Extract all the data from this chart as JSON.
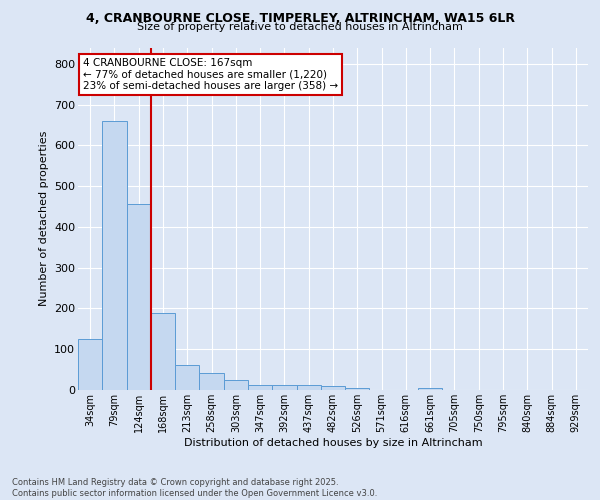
{
  "title_line1": "4, CRANBOURNE CLOSE, TIMPERLEY, ALTRINCHAM, WA15 6LR",
  "title_line2": "Size of property relative to detached houses in Altrincham",
  "xlabel": "Distribution of detached houses by size in Altrincham",
  "ylabel": "Number of detached properties",
  "categories": [
    "34sqm",
    "79sqm",
    "124sqm",
    "168sqm",
    "213sqm",
    "258sqm",
    "303sqm",
    "347sqm",
    "392sqm",
    "437sqm",
    "482sqm",
    "526sqm",
    "571sqm",
    "616sqm",
    "661sqm",
    "705sqm",
    "750sqm",
    "795sqm",
    "840sqm",
    "884sqm",
    "929sqm"
  ],
  "values": [
    125,
    660,
    455,
    190,
    62,
    42,
    25,
    12,
    12,
    12,
    10,
    5,
    0,
    0,
    5,
    0,
    0,
    0,
    0,
    0,
    0
  ],
  "bar_color": "#c5d8f0",
  "bar_edge_color": "#5b9bd5",
  "marker_line_index": 3,
  "marker_line_color": "#cc0000",
  "annotation_text": "4 CRANBOURNE CLOSE: 167sqm\n← 77% of detached houses are smaller (1,220)\n23% of semi-detached houses are larger (358) →",
  "annotation_box_color": "#ffffff",
  "annotation_box_edge": "#cc0000",
  "ylim": [
    0,
    840
  ],
  "yticks": [
    0,
    100,
    200,
    300,
    400,
    500,
    600,
    700,
    800
  ],
  "bg_color": "#dce6f5",
  "grid_color": "#ffffff",
  "footer_line1": "Contains HM Land Registry data © Crown copyright and database right 2025.",
  "footer_line2": "Contains public sector information licensed under the Open Government Licence v3.0."
}
